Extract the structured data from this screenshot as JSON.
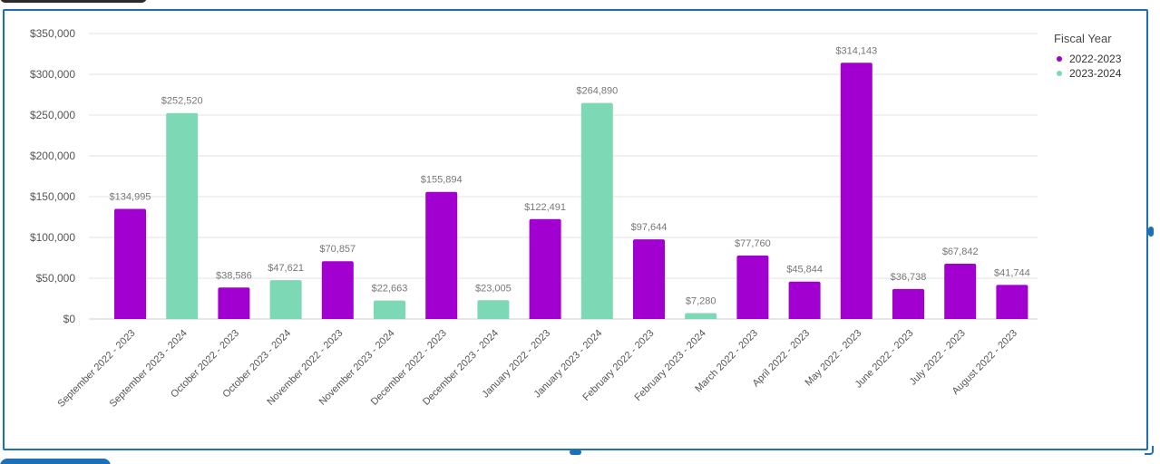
{
  "chart_data": {
    "type": "bar",
    "categories": [
      "September 2022 - 2023",
      "September 2023 - 2024",
      "October 2022 - 2023",
      "October 2023 - 2024",
      "November 2022 - 2023",
      "November 2023 - 2024",
      "December 2022 - 2023",
      "December 2023 - 2024",
      "January 2022 - 2023",
      "January 2023 - 2024",
      "February 2022 - 2023",
      "February 2023 - 2024",
      "March 2022 - 2023",
      "April 2022 - 2023",
      "May 2022 - 2023",
      "June 2022 - 2023",
      "July 2022 - 2023",
      "August 2022 - 2023"
    ],
    "values": [
      134995,
      252520,
      38586,
      47621,
      70857,
      22663,
      155894,
      23005,
      122491,
      264890,
      97644,
      7280,
      77760,
      45844,
      314143,
      36738,
      67842,
      41744
    ],
    "value_labels": [
      "$134,995",
      "$252,520",
      "$38,586",
      "$47,621",
      "$70,857",
      "$22,663",
      "$155,894",
      "$23,005",
      "$122,491",
      "$264,890",
      "$97,644",
      "$7,280",
      "$77,760",
      "$45,844",
      "$314,143",
      "$36,738",
      "$67,842",
      "$41,744"
    ],
    "bar_series": [
      "2022-2023",
      "2023-2024",
      "2022-2023",
      "2023-2024",
      "2022-2023",
      "2023-2024",
      "2022-2023",
      "2023-2024",
      "2022-2023",
      "2023-2024",
      "2022-2023",
      "2023-2024",
      "2022-2023",
      "2022-2023",
      "2022-2023",
      "2022-2023",
      "2022-2023",
      "2022-2023"
    ],
    "series": [
      {
        "name": "2022-2023",
        "color": "#a100d0"
      },
      {
        "name": "2023-2024",
        "color": "#7dd9b5"
      }
    ],
    "ylim": [
      0,
      350000
    ],
    "yticks": [
      0,
      50000,
      100000,
      150000,
      200000,
      250000,
      300000,
      350000
    ],
    "ytick_labels": [
      "$0",
      "$50,000",
      "$100,000",
      "$150,000",
      "$200,000",
      "$250,000",
      "$300,000",
      "$350,000"
    ],
    "legend_title": "Fiscal Year",
    "legend_position": "top-right",
    "grid": true
  }
}
